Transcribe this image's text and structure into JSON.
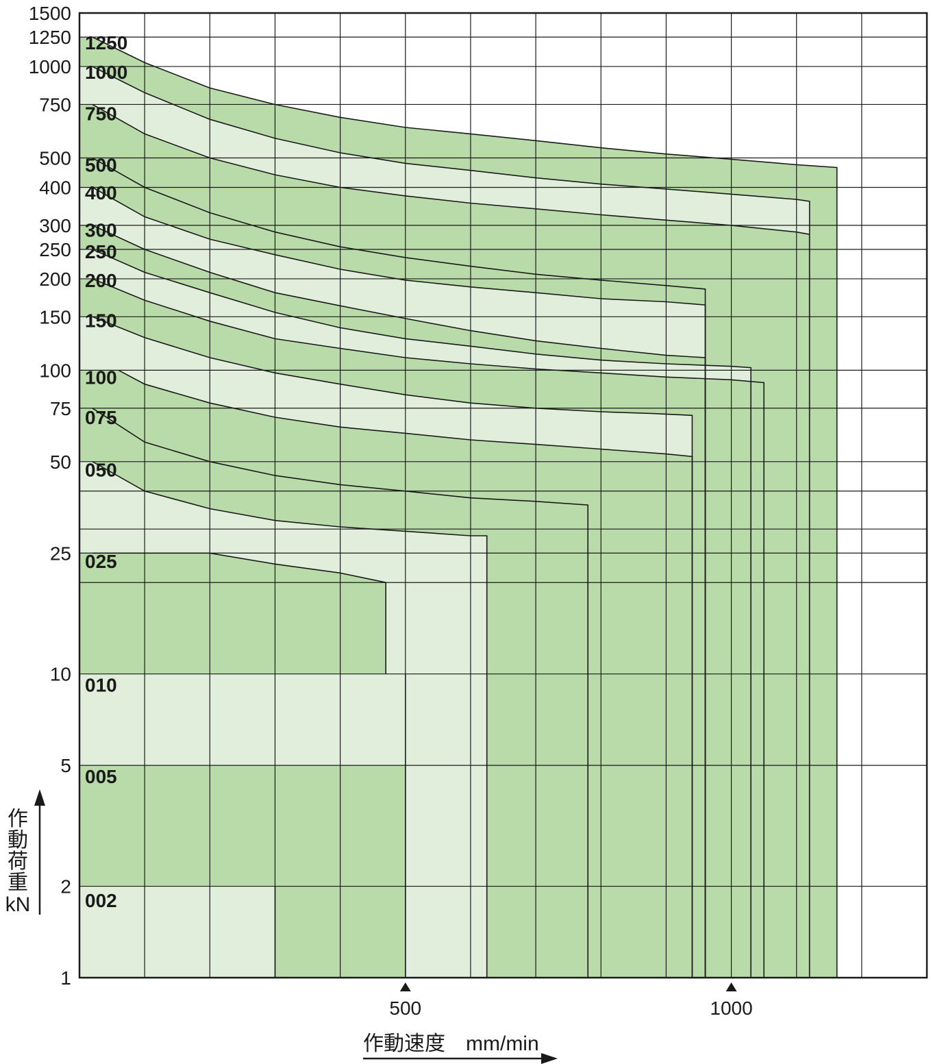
{
  "chart_data": {
    "type": "area",
    "title": "",
    "xlabel": "作動速度　mm/min",
    "ylabel": [
      "作",
      "動",
      "荷",
      "重",
      "kN"
    ],
    "x_scale": "linear",
    "y_scale": "log",
    "xlim": [
      0,
      1300
    ],
    "ylim": [
      1,
      1500
    ],
    "x_tick_labels": [
      "500",
      "1000"
    ],
    "x_ticks": [
      500,
      1000
    ],
    "x_grid": [
      100,
      200,
      300,
      400,
      500,
      600,
      700,
      800,
      900,
      1000,
      1100,
      1200
    ],
    "y_tick_labels": [
      "1500",
      "1250",
      "1000",
      "750",
      "500",
      "400",
      "300",
      "250",
      "200",
      "150",
      "100",
      "75",
      "50",
      "25",
      "10",
      "5",
      "2",
      "1"
    ],
    "y_ticks": [
      1500,
      1250,
      1000,
      750,
      500,
      400,
      300,
      250,
      200,
      150,
      100,
      75,
      50,
      25,
      10,
      5,
      2,
      1
    ],
    "y_grid": [
      1250,
      1000,
      750,
      500,
      400,
      300,
      250,
      200,
      150,
      100,
      75,
      50,
      40,
      30,
      25,
      20,
      10,
      5,
      2
    ],
    "grid": true,
    "legend": "none",
    "colors": {
      "dark_fill": "#b8dba9",
      "light_fill": "#e0eedb",
      "line": "#1a1a1a"
    },
    "series": [
      {
        "name": "1250",
        "fill": "dark",
        "points": [
          [
            0,
            1250
          ],
          [
            20,
            1250
          ],
          [
            100,
            1030
          ],
          [
            200,
            850
          ],
          [
            300,
            750
          ],
          [
            400,
            680
          ],
          [
            500,
            630
          ],
          [
            600,
            600
          ],
          [
            700,
            570
          ],
          [
            800,
            540
          ],
          [
            900,
            515
          ],
          [
            1000,
            495
          ],
          [
            1100,
            475
          ],
          [
            1162,
            465
          ],
          [
            1162,
            1
          ]
        ]
      },
      {
        "name": "1000",
        "fill": "light",
        "points": [
          [
            0,
            1000
          ],
          [
            20,
            1000
          ],
          [
            100,
            820
          ],
          [
            200,
            670
          ],
          [
            300,
            580
          ],
          [
            400,
            520
          ],
          [
            500,
            480
          ],
          [
            600,
            455
          ],
          [
            700,
            430
          ],
          [
            800,
            410
          ],
          [
            900,
            395
          ],
          [
            1000,
            380
          ],
          [
            1100,
            365
          ],
          [
            1120,
            360
          ],
          [
            1120,
            1
          ]
        ]
      },
      {
        "name": "750",
        "fill": "dark",
        "points": [
          [
            0,
            750
          ],
          [
            20,
            750
          ],
          [
            100,
            600
          ],
          [
            200,
            500
          ],
          [
            300,
            440
          ],
          [
            400,
            400
          ],
          [
            500,
            375
          ],
          [
            600,
            355
          ],
          [
            700,
            340
          ],
          [
            800,
            325
          ],
          [
            900,
            312
          ],
          [
            1000,
            300
          ],
          [
            1100,
            285
          ],
          [
            1120,
            280
          ],
          [
            1120,
            1
          ]
        ]
      },
      {
        "name": "500",
        "fill": "dark",
        "points": [
          [
            0,
            500
          ],
          [
            20,
            500
          ],
          [
            100,
            400
          ],
          [
            200,
            330
          ],
          [
            300,
            285
          ],
          [
            400,
            255
          ],
          [
            500,
            235
          ],
          [
            600,
            220
          ],
          [
            700,
            207
          ],
          [
            800,
            198
          ],
          [
            900,
            190
          ],
          [
            960,
            185
          ],
          [
            960,
            1
          ]
        ]
      },
      {
        "name": "400",
        "fill": "light",
        "points": [
          [
            0,
            400
          ],
          [
            20,
            400
          ],
          [
            100,
            320
          ],
          [
            200,
            270
          ],
          [
            300,
            240
          ],
          [
            400,
            215
          ],
          [
            500,
            198
          ],
          [
            600,
            188
          ],
          [
            700,
            180
          ],
          [
            800,
            172
          ],
          [
            900,
            168
          ],
          [
            960,
            164
          ],
          [
            960,
            1
          ]
        ]
      },
      {
        "name": "300",
        "fill": "dark",
        "points": [
          [
            0,
            300
          ],
          [
            20,
            300
          ],
          [
            100,
            250
          ],
          [
            200,
            210
          ],
          [
            300,
            180
          ],
          [
            400,
            163
          ],
          [
            500,
            148
          ],
          [
            600,
            135
          ],
          [
            700,
            125
          ],
          [
            800,
            118
          ],
          [
            900,
            112
          ],
          [
            960,
            110
          ],
          [
            960,
            1
          ]
        ]
      },
      {
        "name": "250",
        "fill": "light",
        "points": [
          [
            0,
            250
          ],
          [
            20,
            250
          ],
          [
            100,
            210
          ],
          [
            200,
            180
          ],
          [
            300,
            155
          ],
          [
            400,
            138
          ],
          [
            500,
            127
          ],
          [
            600,
            120
          ],
          [
            700,
            113
          ],
          [
            800,
            108
          ],
          [
            900,
            105
          ],
          [
            1000,
            103
          ],
          [
            1030,
            102
          ],
          [
            1030,
            1
          ]
        ]
      },
      {
        "name": "200",
        "fill": "dark",
        "points": [
          [
            0,
            200
          ],
          [
            20,
            200
          ],
          [
            100,
            170
          ],
          [
            200,
            145
          ],
          [
            300,
            127
          ],
          [
            400,
            118
          ],
          [
            500,
            110
          ],
          [
            600,
            105
          ],
          [
            700,
            101
          ],
          [
            800,
            98
          ],
          [
            900,
            95
          ],
          [
            1000,
            93
          ],
          [
            1050,
            91
          ],
          [
            1050,
            1
          ]
        ]
      },
      {
        "name": "150",
        "fill": "light",
        "points": [
          [
            0,
            150
          ],
          [
            20,
            150
          ],
          [
            100,
            128
          ],
          [
            200,
            110
          ],
          [
            300,
            98
          ],
          [
            400,
            90
          ],
          [
            500,
            83
          ],
          [
            600,
            78
          ],
          [
            700,
            75
          ],
          [
            800,
            73
          ],
          [
            880,
            72
          ],
          [
            940,
            71
          ],
          [
            940,
            1
          ]
        ]
      },
      {
        "name": "100",
        "fill": "dark",
        "points": [
          [
            0,
            100
          ],
          [
            60,
            100
          ],
          [
            100,
            90
          ],
          [
            200,
            78
          ],
          [
            300,
            70
          ],
          [
            400,
            65
          ],
          [
            500,
            62
          ],
          [
            600,
            59
          ],
          [
            700,
            57
          ],
          [
            800,
            55
          ],
          [
            900,
            53
          ],
          [
            940,
            52
          ],
          [
            940,
            1
          ]
        ]
      },
      {
        "name": "075",
        "fill": "dark",
        "points": [
          [
            0,
            75
          ],
          [
            20,
            75
          ],
          [
            100,
            58
          ],
          [
            200,
            50
          ],
          [
            300,
            45
          ],
          [
            400,
            42
          ],
          [
            500,
            40
          ],
          [
            600,
            38
          ],
          [
            700,
            37
          ],
          [
            780,
            36
          ],
          [
            780,
            1
          ]
        ]
      },
      {
        "name": "050",
        "fill": "light",
        "points": [
          [
            0,
            50
          ],
          [
            20,
            50
          ],
          [
            100,
            40
          ],
          [
            200,
            35
          ],
          [
            300,
            32
          ],
          [
            400,
            30.5
          ],
          [
            500,
            29.5
          ],
          [
            600,
            28.5
          ],
          [
            625,
            28.5
          ],
          [
            625,
            1
          ]
        ]
      },
      {
        "name": "025",
        "fill": "dark",
        "points": [
          [
            0,
            25
          ],
          [
            20,
            25
          ],
          [
            200,
            25
          ],
          [
            300,
            23
          ],
          [
            400,
            21.5
          ],
          [
            470,
            20
          ],
          [
            470,
            10
          ]
        ]
      },
      {
        "name": "010",
        "fill": "light",
        "points": [
          [
            0,
            10
          ],
          [
            500,
            10
          ],
          [
            500,
            1
          ]
        ]
      },
      {
        "name": "005",
        "fill": "dark",
        "points": [
          [
            0,
            5
          ],
          [
            500,
            5
          ],
          [
            500,
            1
          ]
        ]
      },
      {
        "name": "002",
        "fill": "light",
        "points": [
          [
            0,
            2
          ],
          [
            300,
            2
          ],
          [
            300,
            1
          ]
        ]
      }
    ],
    "zones": [
      {
        "label": "1250",
        "y": 1200
      },
      {
        "label": "1000",
        "y": 960
      },
      {
        "label": "750",
        "y": 700
      },
      {
        "label": "500",
        "y": 475
      },
      {
        "label": "400",
        "y": 385
      },
      {
        "label": "300",
        "y": 290
      },
      {
        "label": "250",
        "y": 246
      },
      {
        "label": "200",
        "y": 198
      },
      {
        "label": "150",
        "y": 146
      },
      {
        "label": "100",
        "y": 95
      },
      {
        "label": "075",
        "y": 70
      },
      {
        "label": "050",
        "y": 47
      },
      {
        "label": "025",
        "y": 23.5
      },
      {
        "label": "010",
        "y": 9.2
      },
      {
        "label": "005",
        "y": 4.6
      },
      {
        "label": "002",
        "y": 1.8
      }
    ]
  }
}
